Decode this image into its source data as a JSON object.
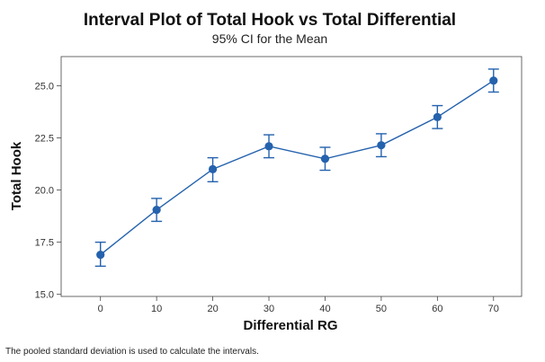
{
  "chart_data": {
    "type": "interval",
    "title": "Interval Plot of Total Hook vs Total Differential",
    "subtitle": "95% CI for the Mean",
    "xlabel": "Differential RG",
    "ylabel": "Total Hook",
    "footnote": "The pooled standard deviation is used to calculate the intervals.",
    "xlim": [
      -7,
      75
    ],
    "ylim": [
      14.9,
      26.4
    ],
    "x_ticks": [
      0,
      10,
      20,
      30,
      40,
      50,
      60,
      70
    ],
    "y_ticks": [
      15.0,
      17.5,
      20.0,
      22.5,
      25.0
    ],
    "y_tick_labels": [
      "15.0",
      "17.5",
      "20.0",
      "22.5",
      "25.0"
    ],
    "grid": false,
    "series": [
      {
        "x": [
          0,
          10,
          20,
          30,
          40,
          50,
          60,
          70
        ],
        "mean": [
          16.9,
          19.05,
          21.0,
          22.1,
          21.5,
          22.15,
          23.5,
          25.25
        ],
        "lower": [
          16.35,
          18.5,
          20.4,
          21.55,
          20.95,
          21.6,
          22.95,
          24.7
        ],
        "upper": [
          17.5,
          19.6,
          21.55,
          22.65,
          22.05,
          22.7,
          24.05,
          25.8
        ]
      }
    ],
    "colors": {
      "series": "#2462ad",
      "axis": "#444444",
      "frame": "#444444"
    }
  }
}
